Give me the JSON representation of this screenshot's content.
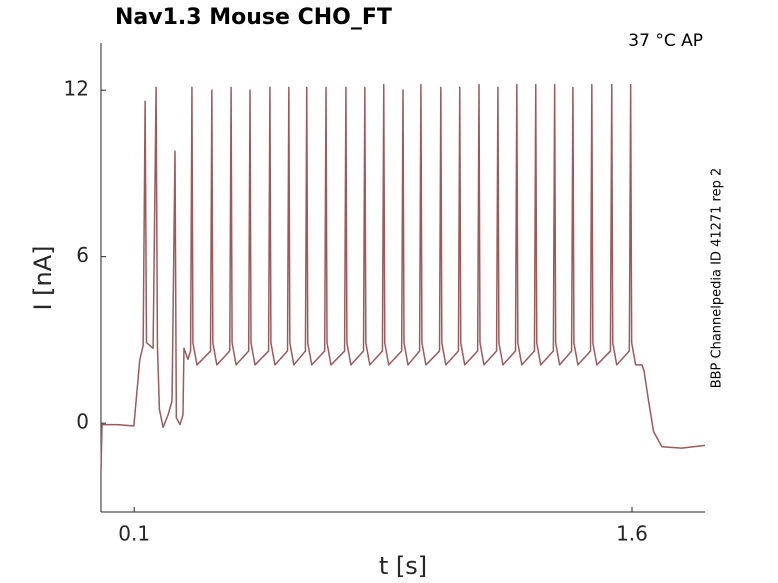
{
  "chart_data": {
    "type": "line",
    "title": "Nav1.3  Mouse  CHO_FT",
    "annotation": "37 °C  AP",
    "side_text": "BBP Channelpedia ID 41271 rep 2",
    "xlabel": "t [s]",
    "ylabel": "I [nA]",
    "color": "#9c5a5a",
    "xlim": [
      0,
      1.82
    ],
    "ylim": [
      -3.2,
      13.7
    ],
    "xticks": [
      0.1,
      1.6
    ],
    "yticks": [
      0,
      6,
      12
    ],
    "x": [
      0.0,
      0.003,
      0.051,
      0.099,
      0.117,
      0.127,
      0.133,
      0.137,
      0.157,
      0.166,
      0.17,
      0.176,
      0.187,
      0.202,
      0.214,
      0.223,
      0.227,
      0.238,
      0.247,
      0.25,
      0.262,
      0.27,
      0.274,
      0.277,
      0.289,
      0.33,
      0.334,
      0.337,
      0.349,
      0.388,
      0.392,
      0.395,
      0.407,
      0.445,
      0.449,
      0.452,
      0.464,
      0.505,
      0.509,
      0.512,
      0.524,
      0.562,
      0.566,
      0.569,
      0.581,
      0.616,
      0.62,
      0.623,
      0.635,
      0.674,
      0.678,
      0.681,
      0.693,
      0.734,
      0.738,
      0.741,
      0.753,
      0.791,
      0.795,
      0.798,
      0.81,
      0.848,
      0.852,
      0.855,
      0.867,
      0.906,
      0.91,
      0.913,
      0.925,
      0.96,
      0.964,
      0.967,
      0.979,
      1.02,
      1.024,
      1.027,
      1.039,
      1.077,
      1.081,
      1.084,
      1.096,
      1.135,
      1.139,
      1.142,
      1.154,
      1.192,
      1.196,
      1.199,
      1.211,
      1.249,
      1.253,
      1.256,
      1.268,
      1.306,
      1.31,
      1.313,
      1.325,
      1.363,
      1.367,
      1.37,
      1.382,
      1.418,
      1.422,
      1.425,
      1.437,
      1.475,
      1.479,
      1.482,
      1.494,
      1.535,
      1.539,
      1.542,
      1.554,
      1.592,
      1.596,
      1.599,
      1.611,
      1.63,
      1.636,
      1.65,
      1.665,
      1.69,
      1.75,
      1.82
    ],
    "values": [
      -1.7,
      -0.05,
      -0.05,
      -0.1,
      2.3,
      2.8,
      11.6,
      2.9,
      2.7,
      12.1,
      2.8,
      0.5,
      -0.15,
      0.3,
      0.8,
      9.8,
      0.2,
      -0.05,
      0.3,
      2.7,
      2.3,
      2.6,
      12.1,
      2.9,
      2.1,
      2.6,
      12.0,
      2.9,
      2.1,
      2.6,
      12.1,
      2.9,
      2.1,
      2.6,
      12.0,
      2.9,
      2.1,
      2.6,
      12.1,
      2.9,
      2.1,
      2.6,
      12.1,
      2.9,
      2.1,
      2.6,
      12.1,
      2.9,
      2.1,
      2.6,
      12.1,
      2.9,
      2.1,
      2.6,
      12.1,
      2.9,
      2.1,
      2.6,
      12.1,
      2.9,
      2.1,
      2.6,
      12.2,
      2.9,
      2.1,
      2.6,
      12.0,
      2.9,
      2.1,
      2.6,
      12.2,
      2.9,
      2.1,
      2.6,
      12.1,
      2.9,
      2.1,
      2.6,
      12.1,
      2.9,
      2.1,
      2.6,
      12.2,
      2.9,
      2.1,
      2.6,
      12.1,
      2.9,
      2.1,
      2.6,
      12.2,
      2.9,
      2.1,
      2.6,
      12.2,
      2.9,
      2.1,
      2.6,
      12.2,
      2.9,
      2.1,
      2.6,
      12.1,
      2.9,
      2.1,
      2.6,
      12.2,
      2.9,
      2.1,
      2.6,
      12.2,
      2.9,
      2.1,
      2.6,
      12.2,
      2.9,
      2.1,
      2.1,
      1.9,
      0.8,
      -0.3,
      -0.85,
      -0.9,
      -0.8
    ]
  }
}
